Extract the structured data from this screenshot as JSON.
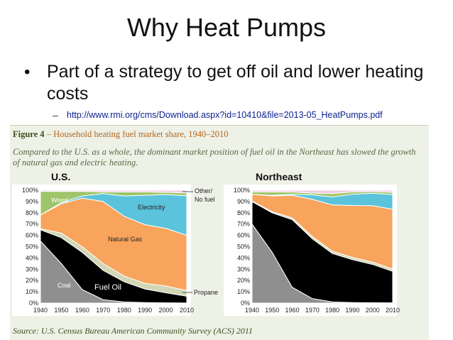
{
  "slide": {
    "title": "Why Heat Pumps",
    "bullet": "Part of a strategy to get off oil and lower heating costs",
    "sub_bullet_dash": "–",
    "link": "http://www.rmi.org/cms/Download.aspx?id=10410&file=2013-05_HeatPumps.pdf"
  },
  "figure": {
    "title_bold": "Figure 4",
    "title_rest": " – Household heating fuel market share, 1940–2010",
    "description": "Compared to the U.S. as a whole, the dominant market position of fuel oil in the Northeast has slowed the growth of natural gas and electric heating.",
    "source": "Source: U.S. Census Bureau American Community Survey (ACS) 2011"
  },
  "colors": {
    "coal": "#8f8f8f",
    "fuel_oil": "#000000",
    "propane": "#d2d6b4",
    "natural_gas": "#f8a45c",
    "electricity": "#5bc3dc",
    "wood": "#9fc46a",
    "other": "#f2cce0"
  },
  "chart_data": [
    {
      "type": "area",
      "title": "U.S.",
      "stacked": true,
      "x": [
        1940,
        1950,
        1960,
        1970,
        1980,
        1990,
        2000,
        2010
      ],
      "ylim": [
        0,
        100
      ],
      "yticks": [
        "0%",
        "10%",
        "20%",
        "30%",
        "40%",
        "50%",
        "60%",
        "70%",
        "80%",
        "90%",
        "100%"
      ],
      "series": [
        {
          "name": "Coal",
          "key": "coal",
          "values": [
            55,
            35,
            12,
            3,
            1,
            0.5,
            0.2,
            0.1
          ]
        },
        {
          "name": "Fuel Oil",
          "key": "fuel_oil",
          "values": [
            10,
            23,
            33,
            26,
            18,
            12,
            9,
            6
          ]
        },
        {
          "name": "Propane",
          "key": "propane",
          "values": [
            1,
            4,
            5,
            6,
            5,
            5,
            6,
            5
          ]
        },
        {
          "name": "Natural Gas",
          "key": "natural_gas",
          "values": [
            12,
            26,
            43,
            55,
            53,
            52,
            51,
            49
          ]
        },
        {
          "name": "Electricity",
          "key": "electricity",
          "values": [
            0,
            1,
            2,
            7,
            18,
            26,
            30,
            35
          ]
        },
        {
          "name": "Wood",
          "key": "wood",
          "values": [
            21,
            10,
            4,
            1.5,
            3.5,
            3,
            2,
            2.5
          ]
        },
        {
          "name": "Other/ No fuel",
          "key": "other",
          "values": [
            1,
            1,
            1,
            1.5,
            1.5,
            1.5,
            1.8,
            2.4
          ]
        }
      ],
      "labels": {
        "wood": "Wood",
        "electricity": "Electricity",
        "natural_gas": "Natural Gas",
        "coal": "Coal",
        "fuel_oil": "Fuel Oil",
        "propane": "Propane",
        "other": "Other/\nNo fuel"
      }
    },
    {
      "type": "area",
      "title": "Northeast",
      "stacked": true,
      "x": [
        1940,
        1950,
        1960,
        1970,
        1980,
        1990,
        2000,
        2010
      ],
      "ylim": [
        0,
        100
      ],
      "yticks": [
        "0%",
        "10%",
        "20%",
        "30%",
        "40%",
        "50%",
        "60%",
        "70%",
        "80%",
        "90%",
        "100%"
      ],
      "series": [
        {
          "name": "Coal",
          "key": "coal",
          "values": [
            70,
            45,
            14,
            4,
            1,
            0.5,
            0.3,
            0.2
          ]
        },
        {
          "name": "Fuel Oil",
          "key": "fuel_oil",
          "values": [
            20,
            35,
            60,
            53,
            43,
            38,
            34,
            28
          ]
        },
        {
          "name": "Propane",
          "key": "propane",
          "values": [
            0.5,
            1,
            1.5,
            2,
            2,
            2,
            2,
            2
          ]
        },
        {
          "name": "Natural Gas",
          "key": "natural_gas",
          "values": [
            6,
            14,
            20,
            33,
            41,
            46,
            50,
            53
          ]
        },
        {
          "name": "Electricity",
          "key": "electricity",
          "values": [
            0,
            0.5,
            1,
            4,
            7,
            10,
            11,
            13
          ]
        },
        {
          "name": "Wood",
          "key": "wood",
          "values": [
            2,
            3,
            2,
            1.5,
            3,
            2,
            1.5,
            2
          ]
        },
        {
          "name": "Other/ No fuel",
          "key": "other",
          "values": [
            1.5,
            1.5,
            1.5,
            2.5,
            3,
            1.5,
            1.2,
            1.8
          ]
        }
      ]
    }
  ]
}
